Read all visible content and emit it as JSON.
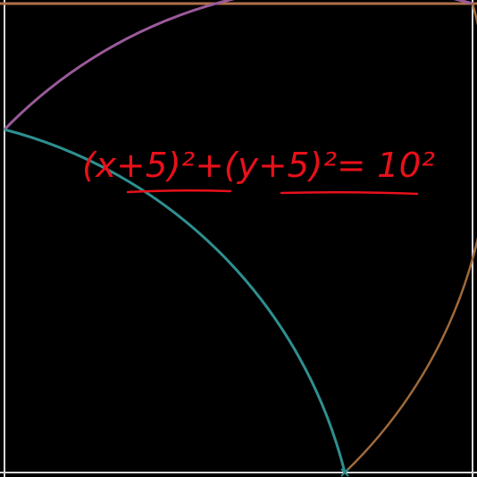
{
  "annotation": {
    "equation_text": "(x+5)²+(y+5)²= 10²",
    "color": "#e8101a"
  },
  "colors": {
    "background": "#000000",
    "frame": "#d8d8d8",
    "top_line": "#b0704a",
    "arc_purple": "#9a5a9a",
    "arc_teal": "#2f8f8f",
    "arc_brown": "#a06a3a"
  }
}
